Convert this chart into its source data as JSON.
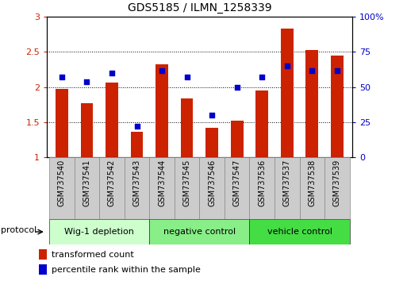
{
  "title": "GDS5185 / ILMN_1258339",
  "samples": [
    "GSM737540",
    "GSM737541",
    "GSM737542",
    "GSM737543",
    "GSM737544",
    "GSM737545",
    "GSM737546",
    "GSM737547",
    "GSM737536",
    "GSM737537",
    "GSM737538",
    "GSM737539"
  ],
  "transformed_count": [
    1.97,
    1.77,
    2.07,
    1.36,
    2.32,
    1.84,
    1.42,
    1.52,
    1.95,
    2.83,
    2.53,
    2.45
  ],
  "percentile_rank": [
    57,
    54,
    60,
    22,
    62,
    57,
    30,
    50,
    57,
    65,
    62,
    62
  ],
  "bar_color": "#cc2200",
  "dot_color": "#0000cc",
  "ylim_left": [
    1.0,
    3.0
  ],
  "ylim_right": [
    0,
    100
  ],
  "yticks_left": [
    1.0,
    1.5,
    2.0,
    2.5,
    3.0
  ],
  "ytick_labels_left": [
    "1",
    "1.5",
    "2",
    "2.5",
    "3"
  ],
  "yticks_right": [
    0,
    25,
    50,
    75,
    100
  ],
  "ytick_labels_right": [
    "0",
    "25",
    "50",
    "75",
    "100%"
  ],
  "groups": [
    {
      "label": "Wig-1 depletion",
      "start": 0,
      "end": 4,
      "color": "#ccffcc"
    },
    {
      "label": "negative control",
      "start": 4,
      "end": 8,
      "color": "#88ee88"
    },
    {
      "label": "vehicle control",
      "start": 8,
      "end": 12,
      "color": "#44dd44"
    }
  ],
  "protocol_label": "protocol",
  "legend_items": [
    {
      "label": "transformed count",
      "color": "#cc2200"
    },
    {
      "label": "percentile rank within the sample",
      "color": "#0000cc"
    }
  ],
  "background_color": "#ffffff",
  "plot_bg": "#ffffff",
  "bar_width": 0.5,
  "sample_box_color": "#cccccc",
  "bar_baseline": 1.0
}
